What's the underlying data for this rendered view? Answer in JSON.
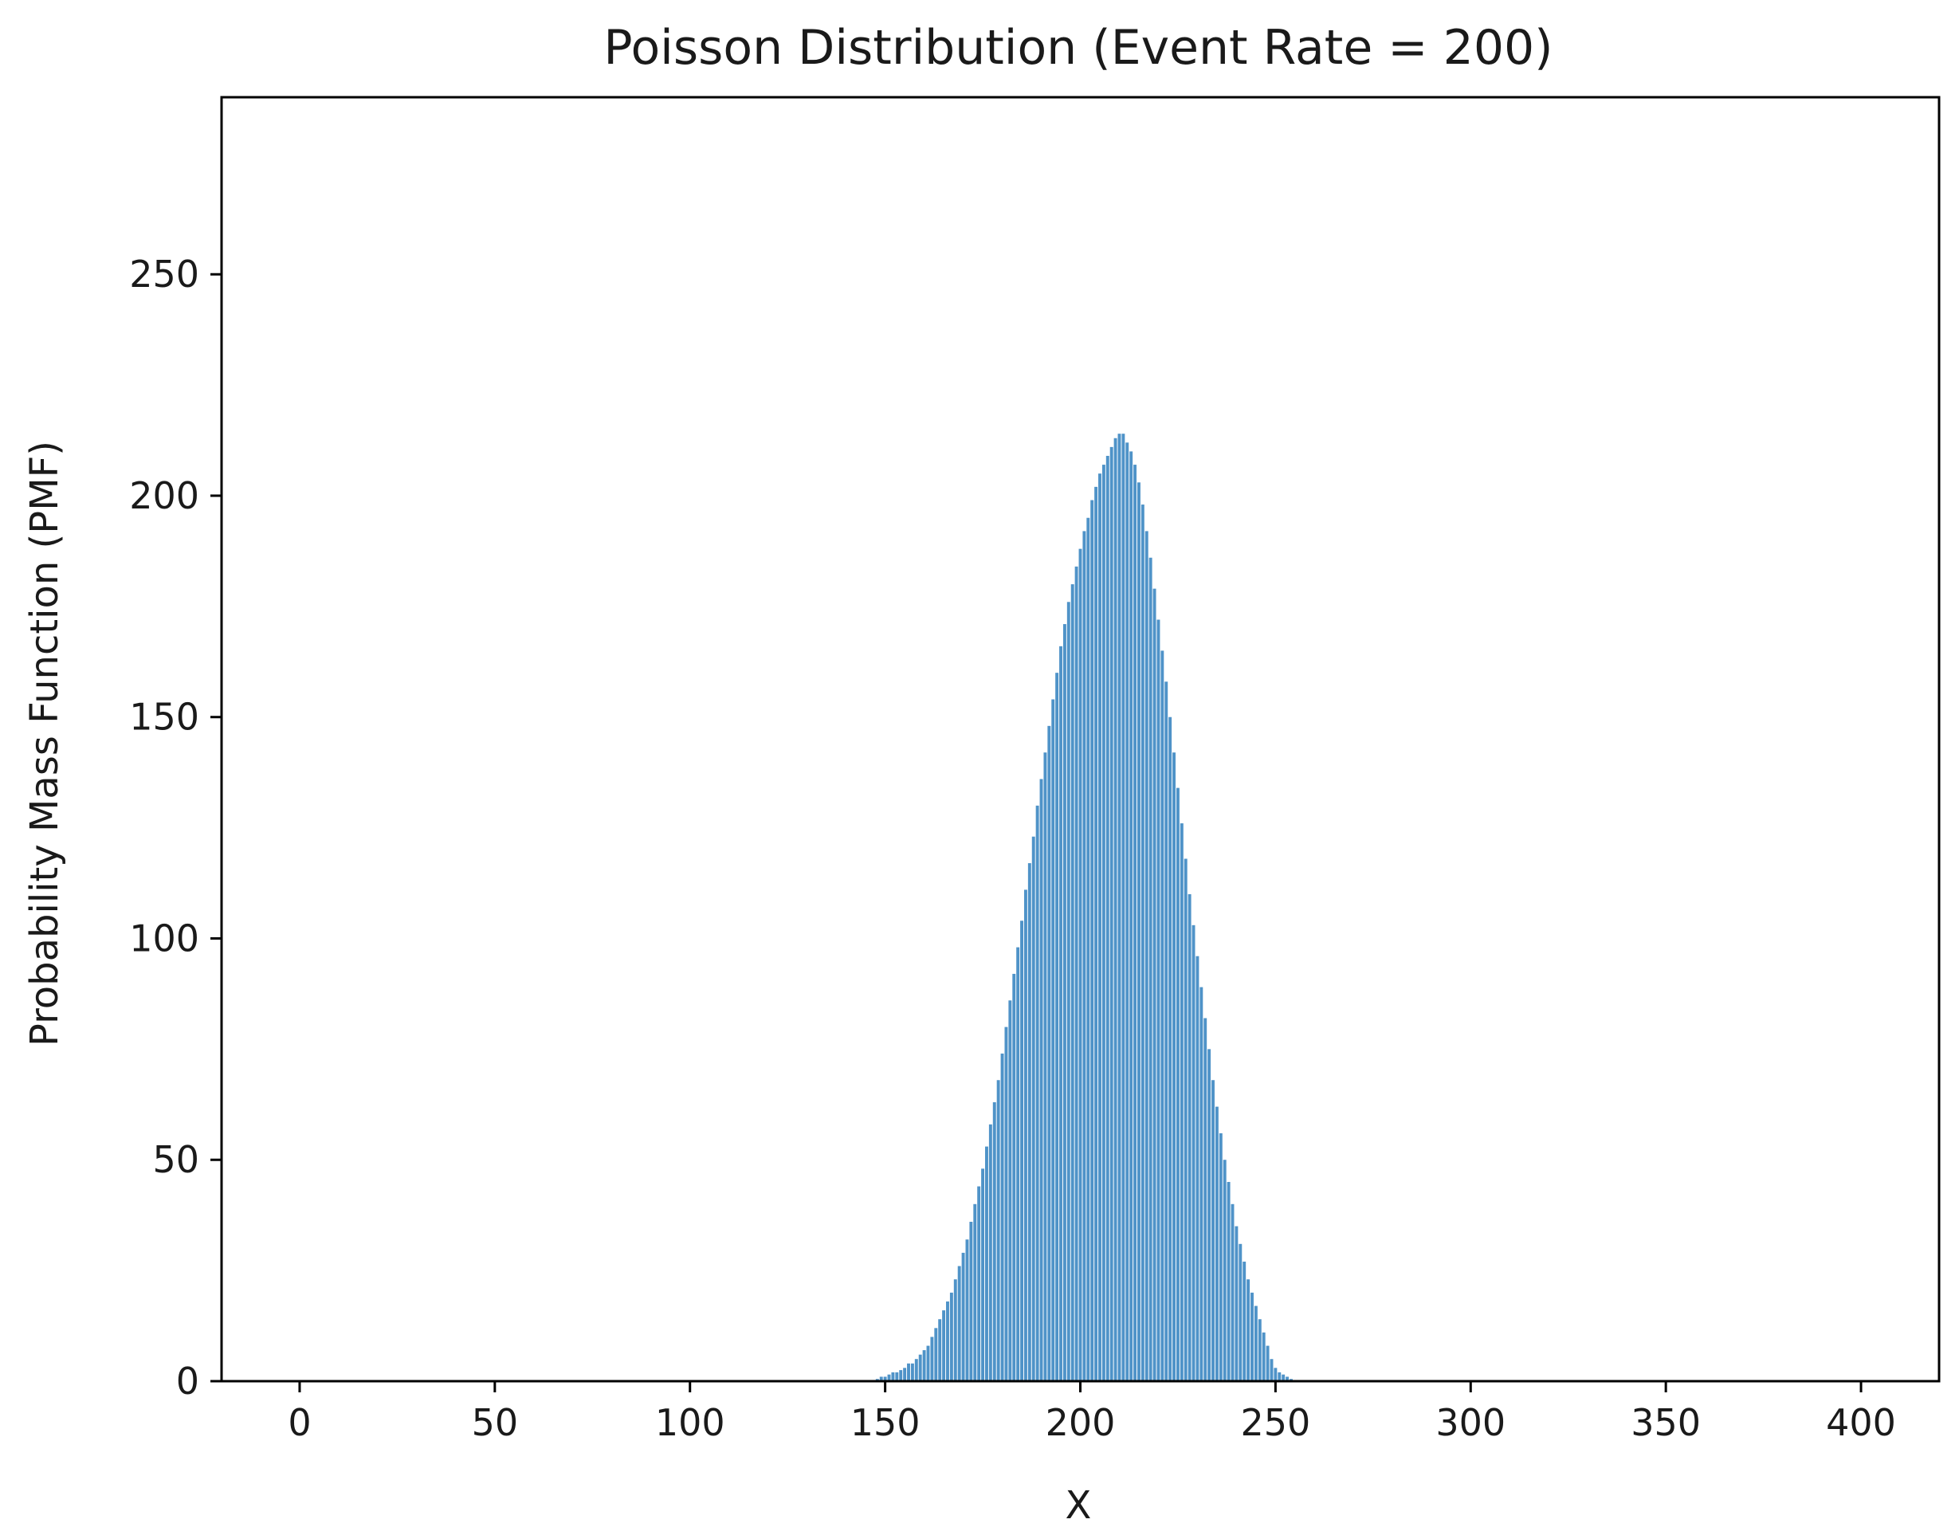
{
  "chart_data": {
    "type": "bar",
    "title": "Poisson Distribution  (Event Rate = 200)",
    "xlabel": "X",
    "ylabel": "Probability Mass Function (PMF)",
    "xlim": [
      -20,
      420
    ],
    "ylim": [
      0,
      290
    ],
    "xticks": [
      0,
      50,
      100,
      150,
      200,
      250,
      300,
      350,
      400
    ],
    "yticks": [
      0,
      50,
      100,
      150,
      200,
      250
    ],
    "grid": false,
    "legend": "none",
    "bar_color": "#4f93c8",
    "series": [
      {
        "x": [
          140,
          141,
          142,
          143,
          144,
          145,
          146,
          147,
          148,
          149,
          150,
          151,
          152,
          153,
          154,
          155,
          156,
          157,
          158,
          159,
          160,
          161,
          162,
          163,
          164,
          165,
          166,
          167,
          168,
          169,
          170,
          171,
          172,
          173,
          174,
          175,
          176,
          177,
          178,
          179,
          180,
          181,
          182,
          183,
          184,
          185,
          186,
          187,
          188,
          189,
          190,
          191,
          192,
          193,
          194,
          195,
          196,
          197,
          198,
          199,
          200,
          201,
          202,
          203,
          204,
          205,
          206,
          207,
          208,
          209,
          210,
          211,
          212,
          213,
          214,
          215,
          216,
          217,
          218,
          219,
          220,
          221,
          222,
          223,
          224,
          225,
          226,
          227,
          228,
          229,
          230,
          231,
          232,
          233,
          234,
          235,
          236,
          237,
          238,
          239,
          240,
          241,
          242,
          243,
          244,
          245,
          246,
          247,
          248,
          249,
          250,
          251,
          252,
          253,
          254,
          255,
          256,
          257,
          258,
          259,
          260
        ],
        "values": [
          0,
          0,
          0,
          0,
          0,
          0,
          0,
          0,
          0.5,
          1,
          1,
          1.5,
          2,
          2,
          2.5,
          3,
          4,
          4,
          5,
          6,
          7,
          8,
          10,
          12,
          14,
          16,
          18,
          20,
          23,
          26,
          29,
          32,
          36,
          40,
          44,
          48,
          53,
          58,
          63,
          68,
          74,
          80,
          86,
          92,
          98,
          104,
          111,
          117,
          123,
          130,
          136,
          142,
          148,
          154,
          160,
          166,
          171,
          176,
          180,
          184,
          188,
          192,
          195,
          199,
          202,
          205,
          207,
          209,
          211,
          213,
          214,
          214,
          212,
          210,
          207,
          203,
          198,
          192,
          186,
          179,
          172,
          165,
          158,
          150,
          142,
          134,
          126,
          118,
          110,
          103,
          96,
          89,
          82,
          75,
          68,
          62,
          56,
          50,
          45,
          40,
          35,
          31,
          27,
          23,
          20,
          17,
          14,
          11,
          8,
          5,
          3,
          2,
          1.5,
          1,
          0.5,
          0,
          0,
          0,
          0,
          0,
          0
        ]
      }
    ]
  }
}
